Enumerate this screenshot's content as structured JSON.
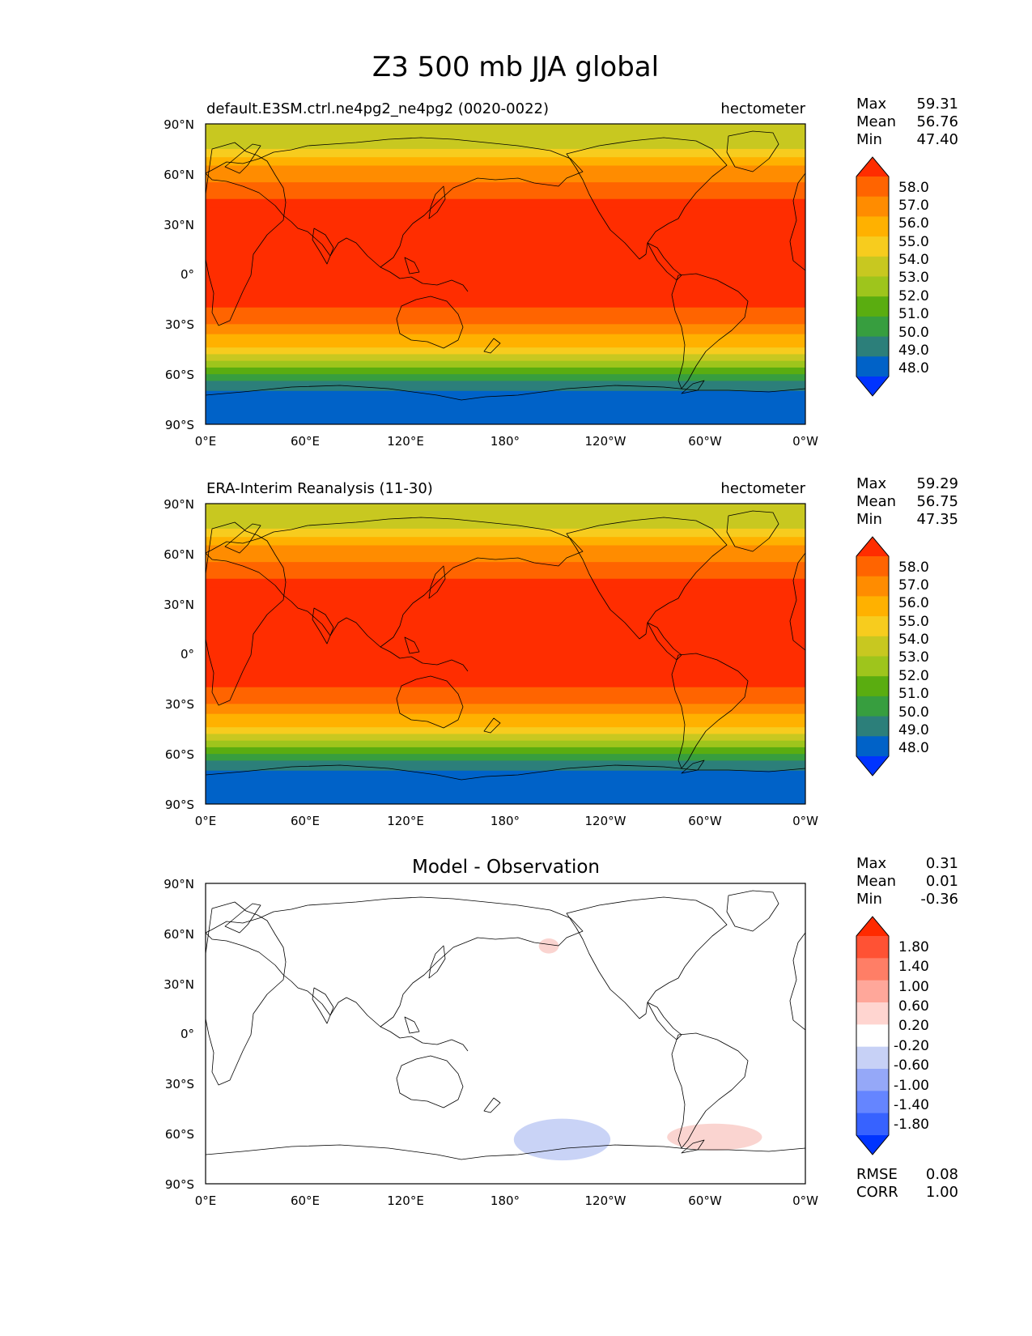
{
  "title": "Z3 500 mb JJA global",
  "colors": {
    "test_ref_levels": [
      "#0034FF",
      "#0062C8",
      "#2C7F7A",
      "#379E3F",
      "#5AAD10",
      "#9EC51C",
      "#C8C820",
      "#F7CC1E",
      "#FFB100",
      "#FF8C00",
      "#FF6400",
      "#FF2D00"
    ],
    "diff_levels": [
      "#0034FF",
      "#3762FF",
      "#6585FF",
      "#95A8F8",
      "#C7D1F6",
      "#FFFFFF",
      "#FFD5D0",
      "#FFA79A",
      "#FF7E66",
      "#FF5234",
      "#FF2A00"
    ],
    "coastline": "#000000",
    "positive_diff_patch": "#FAD4D0",
    "negative_diff_patch": "#C9D3F6"
  },
  "chart_data": [
    {
      "type": "heatmap",
      "panel": "test",
      "title_left": "default.E3SM.ctrl.ne4pg2_ne4pg2 (0020-0022)",
      "title_right": "hectometer",
      "stats": {
        "max_label": "Max",
        "max": "59.31",
        "mean_label": "Mean",
        "mean": "56.76",
        "min_label": "Min",
        "min": "47.40"
      },
      "colorbar_ticks": [
        "58.0",
        "57.0",
        "56.0",
        "55.0",
        "54.0",
        "53.0",
        "52.0",
        "51.0",
        "50.0",
        "49.0",
        "48.0"
      ],
      "xticks": [
        "0°E",
        "60°E",
        "120°E",
        "180°",
        "120°W",
        "60°W",
        "0°W"
      ],
      "yticks": [
        "90°N",
        "60°N",
        "30°N",
        "0°",
        "30°S",
        "60°S",
        "90°S"
      ],
      "xlim": [
        0,
        360
      ],
      "ylim": [
        -90,
        90
      ],
      "zonal_profile": {
        "lat": [
          90,
          80,
          75,
          70,
          65,
          60,
          55,
          50,
          45,
          40,
          -20,
          -25,
          -30,
          -33,
          -36,
          -40,
          -44,
          -48,
          -52,
          -56,
          -60,
          -64,
          -70,
          -90
        ],
        "value": [
          53.5,
          53.5,
          54.4,
          55.2,
          55.7,
          56.3,
          56.8,
          57.3,
          57.8,
          58.3,
          58.3,
          57.6,
          57.1,
          56.6,
          56.1,
          55.4,
          54.6,
          53.7,
          52.6,
          51.6,
          50.5,
          49.6,
          48.7,
          48.7
        ]
      }
    },
    {
      "type": "heatmap",
      "panel": "reference",
      "title_left": "ERA-Interim Reanalysis (11-30)",
      "title_right": "hectometer",
      "stats": {
        "max_label": "Max",
        "max": "59.29",
        "mean_label": "Mean",
        "mean": "56.75",
        "min_label": "Min",
        "min": "47.35"
      },
      "colorbar_ticks": [
        "58.0",
        "57.0",
        "56.0",
        "55.0",
        "54.0",
        "53.0",
        "52.0",
        "51.0",
        "50.0",
        "49.0",
        "48.0"
      ],
      "xticks": [
        "0°E",
        "60°E",
        "120°E",
        "180°",
        "120°W",
        "60°W",
        "0°W"
      ],
      "yticks": [
        "90°N",
        "60°N",
        "30°N",
        "0°",
        "30°S",
        "60°S",
        "90°S"
      ],
      "xlim": [
        0,
        360
      ],
      "ylim": [
        -90,
        90
      ],
      "zonal_profile": {
        "lat": [
          90,
          80,
          75,
          70,
          65,
          60,
          55,
          50,
          45,
          40,
          -20,
          -25,
          -30,
          -33,
          -36,
          -40,
          -44,
          -48,
          -52,
          -56,
          -60,
          -64,
          -70,
          -90
        ],
        "value": [
          53.5,
          53.5,
          54.4,
          55.2,
          55.7,
          56.3,
          56.8,
          57.3,
          57.8,
          58.3,
          58.3,
          57.6,
          57.1,
          56.6,
          56.1,
          55.4,
          54.6,
          53.7,
          52.6,
          51.6,
          50.5,
          49.6,
          48.7,
          48.7
        ]
      }
    },
    {
      "type": "heatmap",
      "panel": "difference",
      "title_center": "Model - Observation",
      "stats": {
        "max_label": "Max",
        "max": "0.31",
        "mean_label": "Mean",
        "mean": "0.01",
        "min_label": "Min",
        "min": "-0.36"
      },
      "metrics": {
        "rmse_label": "RMSE",
        "rmse": "0.08",
        "corr_label": "CORR",
        "corr": "1.00"
      },
      "colorbar_ticks": [
        "1.80",
        "1.40",
        "1.00",
        "0.60",
        "0.20",
        "-0.20",
        "-0.60",
        "-1.00",
        "-1.40",
        "-1.80"
      ],
      "xticks": [
        "0°E",
        "60°E",
        "120°E",
        "180°",
        "120°W",
        "60°W",
        "0°W"
      ],
      "yticks": [
        "90°N",
        "60°N",
        "30°N",
        "0°",
        "30°S",
        "60°S",
        "90°S"
      ],
      "xlim": [
        0,
        360
      ],
      "ylim": [
        -90,
        90
      ],
      "anomalies": [
        {
          "sign": "positive",
          "lon": [
            200,
            212
          ],
          "lat": [
            48,
            57
          ]
        },
        {
          "sign": "negative",
          "lon": [
            185,
            243
          ],
          "lat": [
            -76,
            -51
          ]
        },
        {
          "sign": "positive",
          "lon": [
            277,
            334
          ],
          "lat": [
            -70,
            -54
          ]
        }
      ]
    }
  ]
}
